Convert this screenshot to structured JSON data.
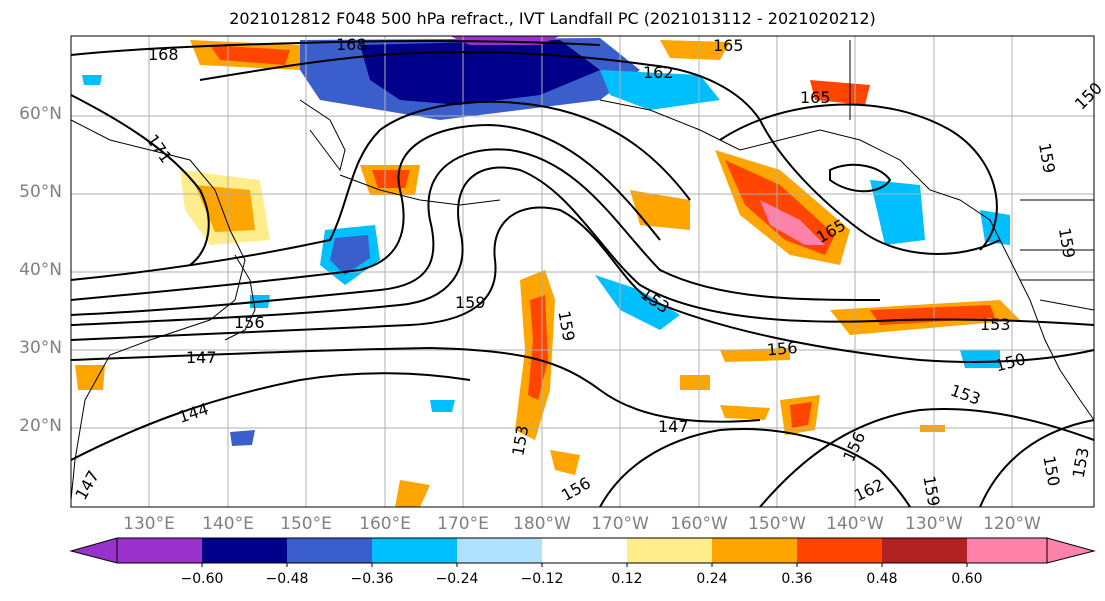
{
  "title": "2021012812 F048 500 hPa refract., IVT Landfall PC (2021013112 - 2021020212)",
  "lat_labels": [
    "60°N",
    "50°N",
    "40°N",
    "30°N",
    "20°N"
  ],
  "lon_labels": [
    "130°E",
    "140°E",
    "150°E",
    "160°E",
    "170°E",
    "180°W",
    "170°W",
    "160°W",
    "150°W",
    "140°W",
    "130°W",
    "120°W"
  ],
  "colorbar": {
    "ticks": [
      "−0.60",
      "−0.48",
      "−0.36",
      "−0.24",
      "−0.12",
      "0.12",
      "0.24",
      "0.36",
      "0.48",
      "0.60"
    ],
    "colors": [
      "#9932cc",
      "#00008b",
      "#3a5fcd",
      "#00bfff",
      "#b0e2ff",
      "#ffffff",
      "#ffec8b",
      "#ffa500",
      "#ff4500",
      "#b22222",
      "#ff82ab"
    ]
  },
  "contour_labels": [
    "168",
    "168",
    "165",
    "162",
    "165",
    "171",
    "159",
    "156",
    "147",
    "144",
    "159",
    "153",
    "156",
    "159",
    "165",
    "153",
    "150",
    "153",
    "147",
    "156",
    "159",
    "162",
    "150",
    "156",
    "153",
    "159",
    "150",
    "153",
    "147"
  ],
  "colors": {
    "grid": "#b0b0b0",
    "contour": "#000000",
    "axis_label": "#808080"
  }
}
